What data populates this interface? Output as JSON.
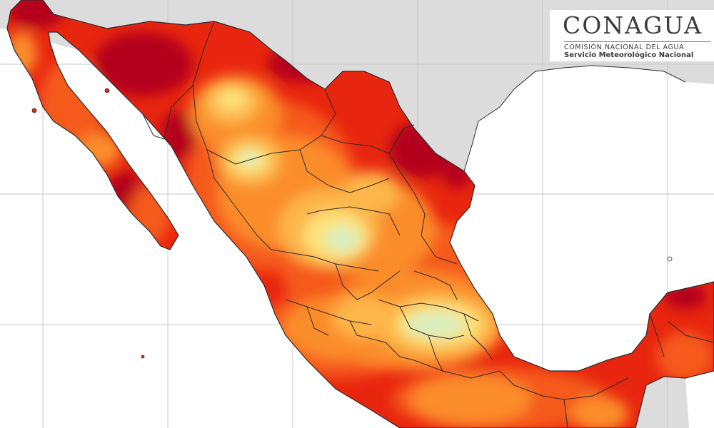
{
  "logo": {
    "title": "CONAGUA",
    "subtitle": "Comisión Nacional del Agua",
    "service": "Servicio Meteorológico Nacional"
  },
  "map": {
    "colors": {
      "land_bg": "#dcdcdc",
      "ocean": "#ffffff",
      "grid": "#c8c8c8",
      "dark_red": "#b3001b",
      "red": "#e8260f",
      "orange_red": "#f55a1a",
      "orange": "#fb8c2a",
      "light_orange": "#fcb648",
      "yellow": "#fde27a",
      "pale_green": "#d8eec0",
      "border": "#2a2a2a"
    }
  }
}
